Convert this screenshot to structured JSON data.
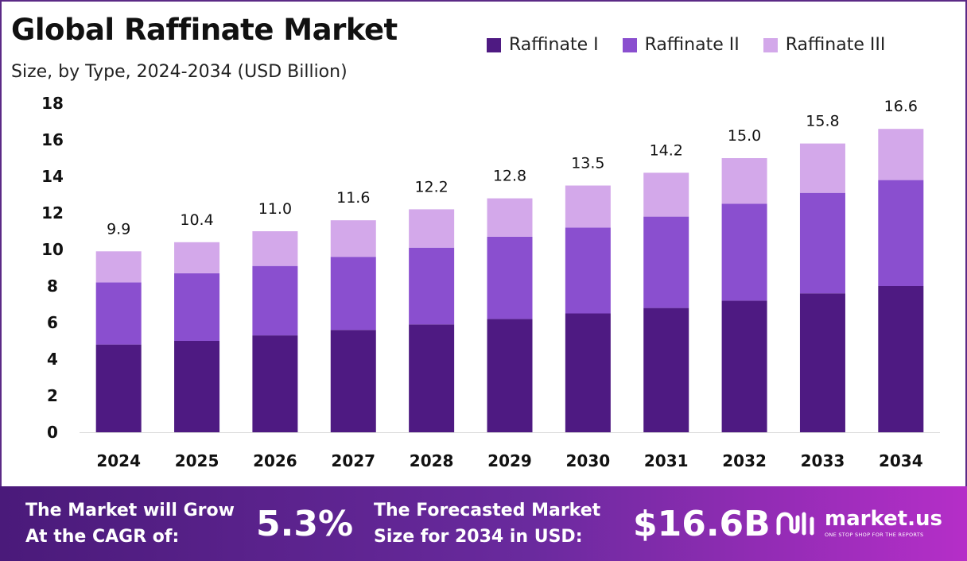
{
  "header": {
    "title": "Global Raffinate Market",
    "subtitle": "Size, by Type, 2024-2034 (USD Billion)"
  },
  "legend": [
    {
      "label": "Raffinate I",
      "color": "#4e1a82"
    },
    {
      "label": "Raffinate II",
      "color": "#8a4fcf"
    },
    {
      "label": "Raffinate III",
      "color": "#d3a8ea"
    }
  ],
  "chart_data": {
    "type": "bar",
    "stacked": true,
    "categories": [
      "2024",
      "2025",
      "2026",
      "2027",
      "2028",
      "2029",
      "2030",
      "2031",
      "2032",
      "2033",
      "2034"
    ],
    "series": [
      {
        "name": "Raffinate I",
        "color": "#4e1a82",
        "values": [
          4.8,
          5.0,
          5.3,
          5.6,
          5.9,
          6.2,
          6.5,
          6.8,
          7.2,
          7.6,
          8.0
        ]
      },
      {
        "name": "Raffinate II",
        "color": "#8a4fcf",
        "values": [
          3.4,
          3.7,
          3.8,
          4.0,
          4.2,
          4.5,
          4.7,
          5.0,
          5.3,
          5.5,
          5.8
        ]
      },
      {
        "name": "Raffinate III",
        "color": "#d3a8ea",
        "values": [
          1.7,
          1.7,
          1.9,
          2.0,
          2.1,
          2.1,
          2.3,
          2.4,
          2.5,
          2.7,
          2.8
        ]
      }
    ],
    "totals": [
      "9.9",
      "10.4",
      "11.0",
      "11.6",
      "12.2",
      "12.8",
      "13.5",
      "14.2",
      "15.0",
      "15.8",
      "16.6"
    ],
    "yticks": [
      "0",
      "2",
      "4",
      "6",
      "8",
      "10",
      "12",
      "14",
      "16",
      "18"
    ],
    "ylim": [
      0,
      18
    ],
    "grid": false,
    "legend_position": "top-right"
  },
  "banner": {
    "cagr_label_line1": "The Market will Grow",
    "cagr_label_line2": "At the CAGR of:",
    "cagr_value": "5.3%",
    "forecast_label_line1": "The Forecasted Market",
    "forecast_label_line2": "Size for 2034 in USD:",
    "forecast_value": "$16.6B",
    "brand_name": "market.us",
    "brand_tagline": "ONE STOP SHOP FOR THE REPORTS"
  }
}
